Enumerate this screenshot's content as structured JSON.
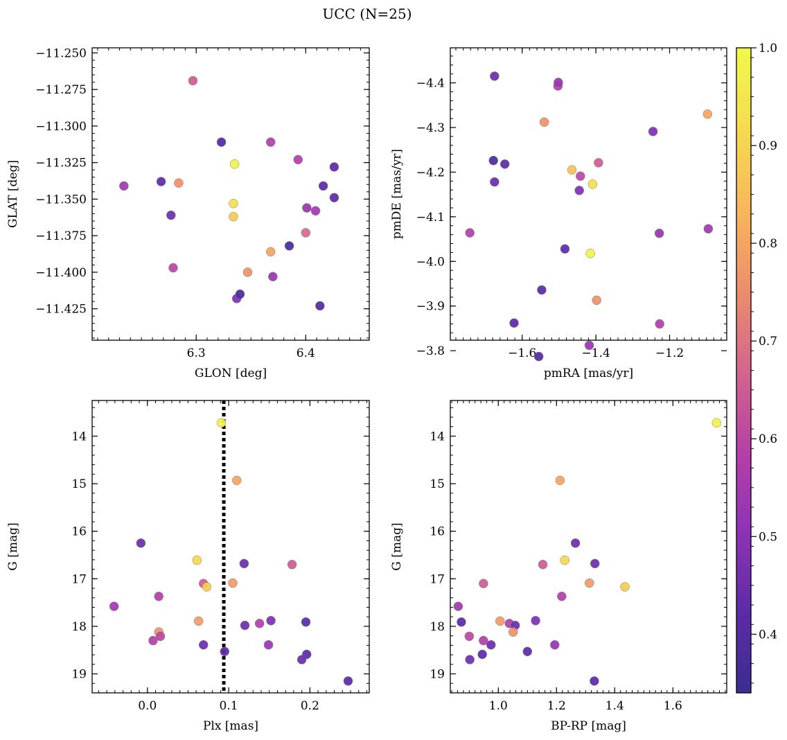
{
  "figure": {
    "title": "UCC (N=25)"
  },
  "colorbar": {
    "min": 0.34,
    "max": 1.0,
    "ticks": [
      0.4,
      0.5,
      0.6,
      0.7,
      0.8,
      0.9,
      1.0
    ],
    "tick_labels": [
      "0.4",
      "0.5",
      "0.6",
      "0.7",
      "0.8",
      "0.9",
      "1.0"
    ],
    "colormap": "plasma",
    "stops": [
      "#3b2d8f",
      "#5d2ba8",
      "#8d33b5",
      "#b640a8",
      "#d4658c",
      "#ec8e6c",
      "#f7b75a",
      "#f5db4f",
      "#f0f94a"
    ]
  },
  "chart_data": [
    {
      "type": "scatter",
      "id": "glon_glat",
      "xlabel": "GLON [deg]",
      "ylabel": "GLAT [deg]",
      "xlim": [
        6.205,
        6.458
      ],
      "ylim": [
        -11.4465,
        -11.2465
      ],
      "x_ticks": [
        6.3,
        6.4
      ],
      "x_tick_labels": [
        "6.3",
        "6.4"
      ],
      "y_ticks": [
        -11.25,
        -11.275,
        -11.3,
        -11.325,
        -11.35,
        -11.375,
        -11.4,
        -11.425
      ],
      "y_tick_labels": [
        "−11.250",
        "−11.275",
        "−11.300",
        "−11.325",
        "−11.350",
        "−11.375",
        "−11.400",
        "−11.425"
      ],
      "x_minor_step": 0.01,
      "y_minor_step": 0.005,
      "invert_y": false,
      "vline": null,
      "points": [
        {
          "x": 6.234,
          "y": -11.341,
          "c": 0.55
        },
        {
          "x": 6.268,
          "y": -11.338,
          "c": 0.42
        },
        {
          "x": 6.284,
          "y": -11.339,
          "c": 0.76
        },
        {
          "x": 6.277,
          "y": -11.361,
          "c": 0.45
        },
        {
          "x": 6.279,
          "y": -11.397,
          "c": 0.6
        },
        {
          "x": 6.297,
          "y": -11.269,
          "c": 0.65
        },
        {
          "x": 6.323,
          "y": -11.311,
          "c": 0.4
        },
        {
          "x": 6.335,
          "y": -11.326,
          "c": 0.98
        },
        {
          "x": 6.334,
          "y": -11.353,
          "c": 0.93
        },
        {
          "x": 6.334,
          "y": -11.362,
          "c": 0.88
        },
        {
          "x": 6.337,
          "y": -11.418,
          "c": 0.48
        },
        {
          "x": 6.34,
          "y": -11.415,
          "c": 0.38
        },
        {
          "x": 6.347,
          "y": -11.4,
          "c": 0.76
        },
        {
          "x": 6.368,
          "y": -11.311,
          "c": 0.58
        },
        {
          "x": 6.368,
          "y": -11.386,
          "c": 0.8
        },
        {
          "x": 6.37,
          "y": -11.403,
          "c": 0.53
        },
        {
          "x": 6.385,
          "y": -11.382,
          "c": 0.38
        },
        {
          "x": 6.393,
          "y": -11.323,
          "c": 0.58
        },
        {
          "x": 6.4,
          "y": -11.373,
          "c": 0.68
        },
        {
          "x": 6.401,
          "y": -11.356,
          "c": 0.53
        },
        {
          "x": 6.409,
          "y": -11.358,
          "c": 0.55
        },
        {
          "x": 6.413,
          "y": -11.423,
          "c": 0.4
        },
        {
          "x": 6.416,
          "y": -11.341,
          "c": 0.42
        },
        {
          "x": 6.426,
          "y": -11.328,
          "c": 0.42
        },
        {
          "x": 6.426,
          "y": -11.349,
          "c": 0.42
        }
      ]
    },
    {
      "type": "scatter",
      "id": "pm",
      "xlabel": "pmRA [mas/yr]",
      "ylabel": "pmDE [mas/yr]",
      "xlim": [
        -1.795,
        -1.045
      ],
      "ylim": [
        -4.4785,
        -3.8235
      ],
      "x_ticks": [
        -1.6,
        -1.4,
        -1.2
      ],
      "x_tick_labels": [
        "−1.6",
        "−1.4",
        "−1.2"
      ],
      "y_ticks": [
        -3.8,
        -3.9,
        -4.0,
        -4.1,
        -4.2,
        -4.3,
        -4.4
      ],
      "y_tick_labels": [
        "−3.8",
        "−3.9",
        "−4.0",
        "−4.1",
        "−4.2",
        "−4.3",
        "−4.4"
      ],
      "x_minor_step": 0.02,
      "y_minor_step": 0.02,
      "invert_y": true,
      "vline": null,
      "points": [
        {
          "x": -1.555,
          "y": -3.787,
          "c": 0.4
        },
        {
          "x": -1.418,
          "y": -3.812,
          "c": 0.53
        },
        {
          "x": -1.622,
          "y": -3.862,
          "c": 0.42
        },
        {
          "x": -1.227,
          "y": -3.86,
          "c": 0.58
        },
        {
          "x": -1.398,
          "y": -3.913,
          "c": 0.76
        },
        {
          "x": -1.547,
          "y": -3.936,
          "c": 0.42
        },
        {
          "x": -1.415,
          "y": -4.018,
          "c": 0.98
        },
        {
          "x": -1.484,
          "y": -4.028,
          "c": 0.42
        },
        {
          "x": -1.742,
          "y": -4.064,
          "c": 0.58
        },
        {
          "x": -1.228,
          "y": -4.063,
          "c": 0.53
        },
        {
          "x": -1.095,
          "y": -4.073,
          "c": 0.55
        },
        {
          "x": -1.445,
          "y": -4.159,
          "c": 0.48
        },
        {
          "x": -1.409,
          "y": -4.173,
          "c": 0.93
        },
        {
          "x": -1.675,
          "y": -4.178,
          "c": 0.45
        },
        {
          "x": -1.442,
          "y": -4.191,
          "c": 0.6
        },
        {
          "x": -1.465,
          "y": -4.205,
          "c": 0.86
        },
        {
          "x": -1.647,
          "y": -4.218,
          "c": 0.42
        },
        {
          "x": -1.393,
          "y": -4.221,
          "c": 0.65
        },
        {
          "x": -1.678,
          "y": -4.226,
          "c": 0.38
        },
        {
          "x": -1.245,
          "y": -4.291,
          "c": 0.48
        },
        {
          "x": -1.54,
          "y": -4.312,
          "c": 0.76
        },
        {
          "x": -1.097,
          "y": -4.33,
          "c": 0.8
        },
        {
          "x": -1.503,
          "y": -4.393,
          "c": 0.58
        },
        {
          "x": -1.502,
          "y": -4.401,
          "c": 0.53
        },
        {
          "x": -1.675,
          "y": -4.415,
          "c": 0.45
        }
      ]
    },
    {
      "type": "scatter",
      "id": "plx_g",
      "xlabel": "Plx [mas]",
      "ylabel": "G [mag]",
      "xlim": [
        -0.068,
        0.273
      ],
      "ylim": [
        13.25,
        19.4
      ],
      "x_ticks": [
        0.0,
        0.1,
        0.2
      ],
      "x_tick_labels": [
        "0.0",
        "0.1",
        "0.2"
      ],
      "y_ticks": [
        14,
        15,
        16,
        17,
        18,
        19
      ],
      "y_tick_labels": [
        "14",
        "15",
        "16",
        "17",
        "18",
        "19"
      ],
      "x_minor_step": 0.01,
      "y_minor_step": 0.2,
      "invert_y": true,
      "vline": 0.094,
      "points": [
        {
          "x": 0.091,
          "y": 13.72,
          "c": 0.98
        },
        {
          "x": 0.11,
          "y": 14.93,
          "c": 0.8
        },
        {
          "x": -0.008,
          "y": 16.25,
          "c": 0.45
        },
        {
          "x": 0.061,
          "y": 16.61,
          "c": 0.91
        },
        {
          "x": 0.119,
          "y": 16.68,
          "c": 0.45
        },
        {
          "x": 0.178,
          "y": 16.7,
          "c": 0.65
        },
        {
          "x": 0.105,
          "y": 17.09,
          "c": 0.78
        },
        {
          "x": 0.069,
          "y": 17.1,
          "c": 0.65
        },
        {
          "x": 0.073,
          "y": 17.17,
          "c": 0.88
        },
        {
          "x": 0.014,
          "y": 17.37,
          "c": 0.58
        },
        {
          "x": -0.041,
          "y": 17.58,
          "c": 0.55
        },
        {
          "x": 0.152,
          "y": 17.88,
          "c": 0.48
        },
        {
          "x": 0.063,
          "y": 17.89,
          "c": 0.78
        },
        {
          "x": 0.195,
          "y": 17.91,
          "c": 0.42
        },
        {
          "x": 0.138,
          "y": 17.94,
          "c": 0.58
        },
        {
          "x": 0.12,
          "y": 17.98,
          "c": 0.45
        },
        {
          "x": 0.014,
          "y": 18.12,
          "c": 0.76
        },
        {
          "x": 0.016,
          "y": 18.21,
          "c": 0.6
        },
        {
          "x": 0.007,
          "y": 18.3,
          "c": 0.58
        },
        {
          "x": 0.069,
          "y": 18.39,
          "c": 0.45
        },
        {
          "x": 0.149,
          "y": 18.39,
          "c": 0.53
        },
        {
          "x": 0.095,
          "y": 18.53,
          "c": 0.42
        },
        {
          "x": 0.196,
          "y": 18.59,
          "c": 0.42
        },
        {
          "x": 0.19,
          "y": 18.7,
          "c": 0.45
        },
        {
          "x": 0.247,
          "y": 19.15,
          "c": 0.42
        }
      ]
    },
    {
      "type": "scatter",
      "id": "color_g",
      "xlabel": "BP-RP [mag]",
      "ylabel": "G [mag]",
      "xlim": [
        0.835,
        1.785
      ],
      "ylim": [
        13.25,
        19.4
      ],
      "x_ticks": [
        1.0,
        1.2,
        1.4,
        1.6
      ],
      "x_tick_labels": [
        "1.0",
        "1.2",
        "1.4",
        "1.6"
      ],
      "y_ticks": [
        14,
        15,
        16,
        17,
        18,
        19
      ],
      "y_tick_labels": [
        "14",
        "15",
        "16",
        "17",
        "18",
        "19"
      ],
      "x_minor_step": 0.02,
      "y_minor_step": 0.2,
      "invert_y": true,
      "vline": null,
      "points": [
        {
          "x": 1.75,
          "y": 13.72,
          "c": 0.98
        },
        {
          "x": 1.212,
          "y": 14.93,
          "c": 0.8
        },
        {
          "x": 1.265,
          "y": 16.25,
          "c": 0.45
        },
        {
          "x": 1.228,
          "y": 16.61,
          "c": 0.91
        },
        {
          "x": 1.332,
          "y": 16.68,
          "c": 0.45
        },
        {
          "x": 1.153,
          "y": 16.7,
          "c": 0.65
        },
        {
          "x": 1.313,
          "y": 17.09,
          "c": 0.78
        },
        {
          "x": 0.949,
          "y": 17.1,
          "c": 0.65
        },
        {
          "x": 1.435,
          "y": 17.17,
          "c": 0.88
        },
        {
          "x": 1.218,
          "y": 17.37,
          "c": 0.58
        },
        {
          "x": 0.862,
          "y": 17.58,
          "c": 0.55
        },
        {
          "x": 1.128,
          "y": 17.88,
          "c": 0.48
        },
        {
          "x": 1.006,
          "y": 17.89,
          "c": 0.78
        },
        {
          "x": 0.873,
          "y": 17.91,
          "c": 0.42
        },
        {
          "x": 1.038,
          "y": 17.94,
          "c": 0.58
        },
        {
          "x": 1.058,
          "y": 17.98,
          "c": 0.45
        },
        {
          "x": 1.051,
          "y": 18.12,
          "c": 0.76
        },
        {
          "x": 0.9,
          "y": 18.21,
          "c": 0.6
        },
        {
          "x": 0.949,
          "y": 18.3,
          "c": 0.58
        },
        {
          "x": 0.975,
          "y": 18.39,
          "c": 0.45
        },
        {
          "x": 1.194,
          "y": 18.39,
          "c": 0.53
        },
        {
          "x": 1.1,
          "y": 18.53,
          "c": 0.42
        },
        {
          "x": 0.945,
          "y": 18.59,
          "c": 0.42
        },
        {
          "x": 0.902,
          "y": 18.7,
          "c": 0.45
        },
        {
          "x": 1.33,
          "y": 19.15,
          "c": 0.42
        }
      ]
    }
  ]
}
